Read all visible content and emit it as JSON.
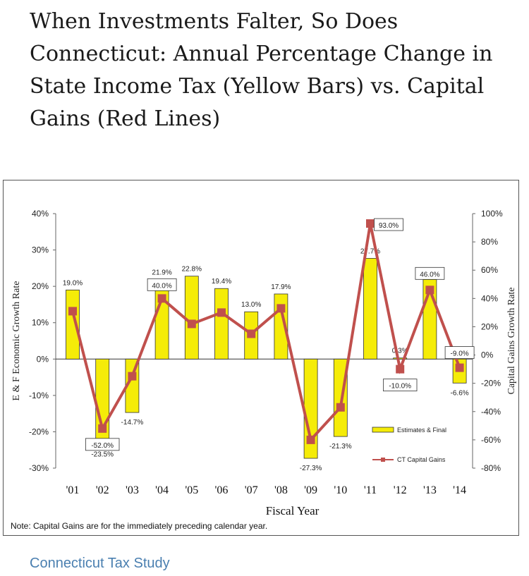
{
  "headline": "When Investments Falter, So Does Connecticut: Annual Percentage Change in State Income Tax (Yellow Bars) vs. Capital Gains (Red Lines)",
  "source_link": "Connecticut Tax Study",
  "colors": {
    "bar_fill": "#f5ec08",
    "bar_stroke": "#333333",
    "line": "#c0504d",
    "link": "#4a7fb0"
  },
  "chart_data": {
    "type": "bar",
    "xlabel": "Fiscal Year",
    "ylabel": "E & F Economic Growth Rate",
    "y2label": "Capital Gains Growth Rate",
    "note": "Note: Capital Gains are for the immediately preceding calendar year.",
    "categories": [
      "'01",
      "'02",
      "'03",
      "'04",
      "'05",
      "'06",
      "'07",
      "'08",
      "'09",
      "'10",
      "'11",
      "'12",
      "'13",
      "'14"
    ],
    "ylim": [
      -30,
      40
    ],
    "y_ticks": [
      "40%",
      "30%",
      "20%",
      "10%",
      "0%",
      "-10%",
      "-20%",
      "-30%"
    ],
    "y2lim": [
      -80,
      100
    ],
    "y2_ticks": [
      "100%",
      "80%",
      "60%",
      "40%",
      "20%",
      "0%",
      "-20%",
      "-40%",
      "-60%",
      "-80%"
    ],
    "legend_position": "bottom-right",
    "series": [
      {
        "name": "Estimates & Final",
        "type": "bar",
        "axis": "left",
        "values": [
          19.0,
          -23.5,
          -14.7,
          21.9,
          22.8,
          19.4,
          13.0,
          17.9,
          -27.3,
          -21.3,
          27.7,
          0.3,
          21.9,
          -6.6
        ],
        "labels": [
          "19.0%",
          "-23.5%",
          "-14.7%",
          "21.9%",
          "22.8%",
          "19.4%",
          "13.0%",
          "17.9%",
          "-27.3%",
          "-21.3%",
          "27.7%",
          "0.3%",
          "21.9%",
          "-6.6%"
        ]
      },
      {
        "name": "CT Capital Gains",
        "type": "line",
        "axis": "right",
        "values": [
          31,
          -52.0,
          -15,
          40.0,
          22,
          30,
          15,
          33,
          -60,
          -37,
          93.0,
          -10.0,
          46.0,
          -9.0
        ],
        "callouts": [
          {
            "index": 1,
            "label": "-52.0%"
          },
          {
            "index": 3,
            "label": "40.0%"
          },
          {
            "index": 10,
            "label": "93.0%"
          },
          {
            "index": 11,
            "label": "-10.0%"
          },
          {
            "index": 12,
            "label": "46.0%"
          },
          {
            "index": 13,
            "label": "-9.0%"
          }
        ]
      }
    ]
  }
}
